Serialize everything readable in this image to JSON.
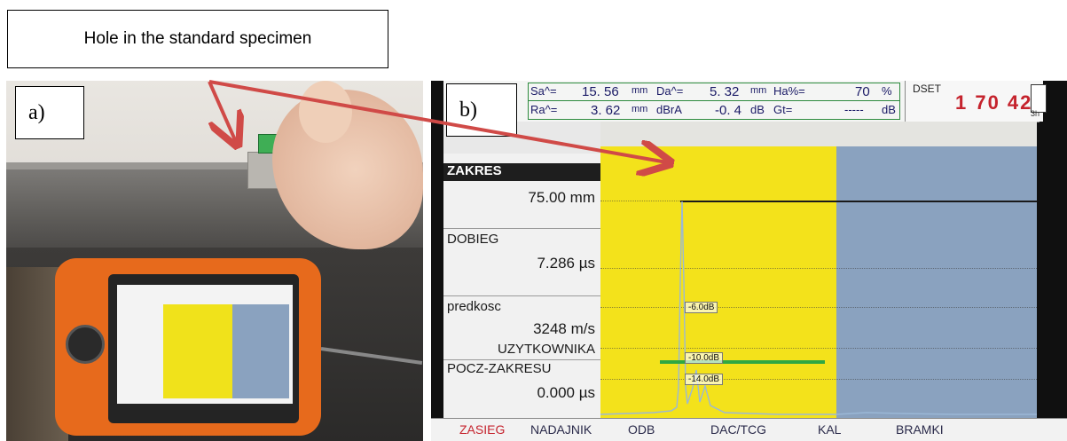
{
  "callout": {
    "text": "Hole in the standard specimen"
  },
  "panel_a": {
    "label": "a)"
  },
  "panel_b": {
    "label": "b)",
    "header": {
      "row1": [
        {
          "key": "Sa^=",
          "value": "15. 56",
          "unit": "mm"
        },
        {
          "key": "Da^=",
          "value": "5. 32",
          "unit": "mm"
        },
        {
          "key": "Ha%=",
          "value": "70",
          "unit": "%"
        }
      ],
      "row2": [
        {
          "key": "Ra^=",
          "value": "3. 62",
          "unit": "mm"
        },
        {
          "key": "dBrA",
          "value": "-0. 4",
          "unit": "dB"
        },
        {
          "key": "Gt=",
          "value": "-----",
          "unit": "dB"
        }
      ],
      "dset_label": "DSET",
      "dset_value": "1 70 42",
      "battery_text": "3h"
    },
    "left_panel": {
      "zakres_label": "ZAKRES",
      "zakres_value": "75.00 mm",
      "dobieg_label": "DOBIEG",
      "dobieg_value": "7.286 µs",
      "predkosc_label": "predkosc",
      "predkosc_value": "3248 m/s",
      "uzytkownika": "UZYTKOWNIKA",
      "pocz_label": "POCZ-ZAKRESU",
      "pocz_value": "0.000 µs"
    },
    "plot": {
      "db_marks": [
        "-6.0dB",
        "-10.0dB",
        "-14.0dB"
      ],
      "colors": {
        "yellow": "#f3e21b",
        "blue": "#8aa2bf",
        "gate": "#2fa843"
      }
    },
    "footer_tabs": [
      "ZASIEG",
      "NADAJNIK",
      "ODB",
      "DAC/TCG",
      "KAL",
      "BRAMKI"
    ],
    "active_tab": "ZASIEG"
  },
  "arrow_color": "#d04a47"
}
